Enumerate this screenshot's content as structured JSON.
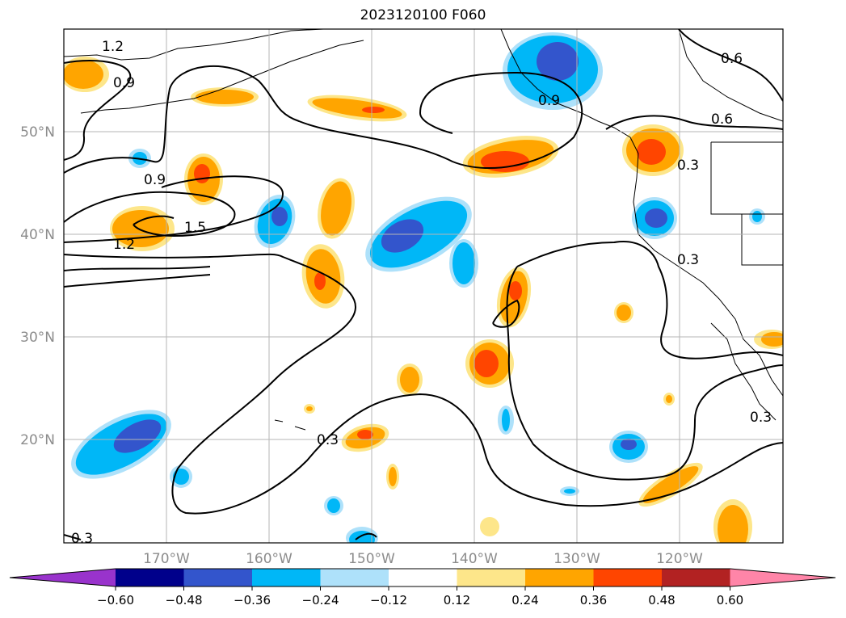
{
  "title": "2023120100 F060",
  "map": {
    "lat_labels": [
      "50°N",
      "40°N",
      "30°N",
      "20°N"
    ],
    "lon_labels": [
      "170°W",
      "160°W",
      "150°W",
      "140°W",
      "130°W",
      "120°W"
    ],
    "contour_labels": [
      "1.2",
      "0.9",
      "0.9",
      "1.5",
      "1.2",
      "0.9",
      "0.6",
      "0.6",
      "0.3",
      "0.3",
      "0.3",
      "0.3",
      "0.3"
    ]
  },
  "colorbar": {
    "ticks": [
      "−0.60",
      "−0.48",
      "−0.36",
      "−0.24",
      "−0.12",
      "0.12",
      "0.24",
      "0.36",
      "0.48",
      "0.60"
    ],
    "colors": [
      "#9933cc",
      "#00008b",
      "#3355cc",
      "#00b7f7",
      "#aee1fa",
      "#ffffff",
      "#fde68a",
      "#ffa500",
      "#ff4500",
      "#b22222",
      "#ff85a8"
    ]
  }
}
